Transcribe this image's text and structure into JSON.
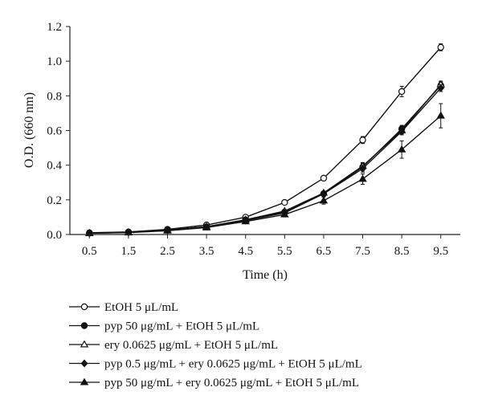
{
  "chart_data": {
    "type": "line",
    "title": "",
    "xlabel": "Time (h)",
    "ylabel": "O.D. (660 nm)",
    "x": [
      0.5,
      1.5,
      2.5,
      3.5,
      4.5,
      5.5,
      6.5,
      7.5,
      8.5,
      9.5
    ],
    "x_ticks": [
      "0.5",
      "1.5",
      "2.5",
      "3.5",
      "4.5",
      "5.5",
      "6.5",
      "7.5",
      "8.5",
      "9.5"
    ],
    "ylim": [
      0,
      1.2
    ],
    "y_ticks": [
      "0.0",
      "0.2",
      "0.4",
      "0.6",
      "0.8",
      "1.0",
      "1.2"
    ],
    "grid": false,
    "legend_position": "bottom",
    "series": [
      {
        "name": "EtOH 5 μL/mL",
        "marker": "circle-open",
        "values": [
          0.01,
          0.015,
          0.03,
          0.055,
          0.1,
          0.185,
          0.325,
          0.545,
          0.825,
          1.08
        ],
        "errors": [
          0.003,
          0.003,
          0.004,
          0.005,
          0.006,
          0.008,
          0.012,
          0.02,
          0.03,
          0.02
        ]
      },
      {
        "name": "pyp 50 μg/mL + EtOH 5 μL/mL",
        "marker": "circle-filled",
        "values": [
          0.008,
          0.013,
          0.025,
          0.045,
          0.085,
          0.13,
          0.235,
          0.39,
          0.61,
          0.86
        ],
        "errors": [
          0.002,
          0.003,
          0.003,
          0.004,
          0.005,
          0.007,
          0.01,
          0.02,
          0.02,
          0.02
        ]
      },
      {
        "name": "ery 0.0625 μg/mL + EtOH 5 μL/mL",
        "marker": "triangle-open",
        "values": [
          0.008,
          0.012,
          0.025,
          0.045,
          0.085,
          0.135,
          0.24,
          0.395,
          0.6,
          0.865
        ],
        "errors": [
          0.002,
          0.003,
          0.003,
          0.004,
          0.005,
          0.007,
          0.01,
          0.02,
          0.02,
          0.02
        ]
      },
      {
        "name": "pyp 0.5 μg/mL + ery 0.0625 μg/mL + EtOH 5 μL/mL",
        "marker": "diamond-filled",
        "values": [
          0.008,
          0.012,
          0.024,
          0.045,
          0.08,
          0.125,
          0.235,
          0.38,
          0.595,
          0.845
        ],
        "errors": [
          0.002,
          0.003,
          0.003,
          0.004,
          0.005,
          0.007,
          0.01,
          0.02,
          0.02,
          0.02
        ]
      },
      {
        "name": "pyp 50 μg/mL + ery 0.0625 μg/mL + EtOH 5 μL/mL",
        "marker": "triangle-filled",
        "values": [
          0.007,
          0.011,
          0.022,
          0.04,
          0.075,
          0.115,
          0.195,
          0.32,
          0.49,
          0.685
        ],
        "errors": [
          0.002,
          0.003,
          0.003,
          0.004,
          0.005,
          0.007,
          0.02,
          0.03,
          0.05,
          0.07
        ]
      }
    ]
  }
}
